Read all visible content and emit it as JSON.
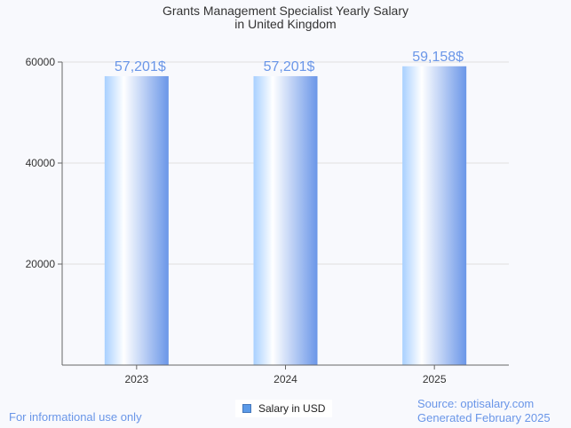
{
  "chart_data": {
    "type": "bar",
    "title": "Grants Management Specialist Yearly Salary",
    "subtitle": "in United Kingdom",
    "categories": [
      "2023",
      "2024",
      "2025"
    ],
    "values": [
      57201,
      57201,
      59158
    ],
    "data_labels": [
      "57,201$",
      "57,201$",
      "59,158$"
    ],
    "xlabel": "",
    "ylabel": "",
    "ylim": [
      0,
      60000
    ],
    "yticks": [
      "20000",
      "40000",
      "60000"
    ],
    "ytick_values": [
      20000,
      40000,
      60000
    ],
    "grid": true,
    "legend": {
      "entries": [
        "Salary in USD"
      ],
      "placement": "bottom-center"
    },
    "colors": {
      "label": "#6a96e8",
      "bar_light": "#a8d0ff",
      "bar_dark": "#6a96e8"
    }
  },
  "footer": {
    "disclaimer": "For informational use only",
    "source": "Source: optisalary.com",
    "generated": "Generated February 2025"
  }
}
